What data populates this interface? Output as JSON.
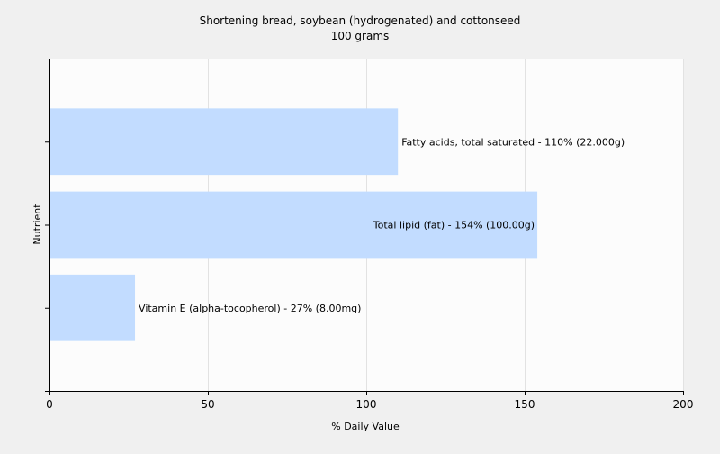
{
  "chart_data": {
    "type": "bar",
    "orientation": "horizontal",
    "title": "Shortening bread, soybean (hydrogenated) and cottonseed",
    "subtitle": "100 grams",
    "xlabel": "% Daily Value",
    "ylabel": "Nutrient",
    "xlim": [
      0,
      200
    ],
    "xticks": [
      0,
      50,
      100,
      150,
      200
    ],
    "grid": true,
    "legend": "none",
    "categories": [
      "Fatty acids, total saturated",
      "Total lipid (fat)",
      "Vitamin E (alpha-tocopherol)"
    ],
    "values": [
      110,
      154,
      27
    ],
    "data_labels": [
      "Fatty acids, total saturated - 110% (22.000g)",
      "Total lipid (fat) - 154% (100.00g)",
      "Vitamin E (alpha-tocopherol) - 27% (8.00mg)"
    ],
    "colors": {
      "bar": "#c2dcff",
      "background": "#f0f0f0",
      "plot_background": "#fcfcfc",
      "grid": "#e2e2e2",
      "axis": "#000000"
    }
  }
}
